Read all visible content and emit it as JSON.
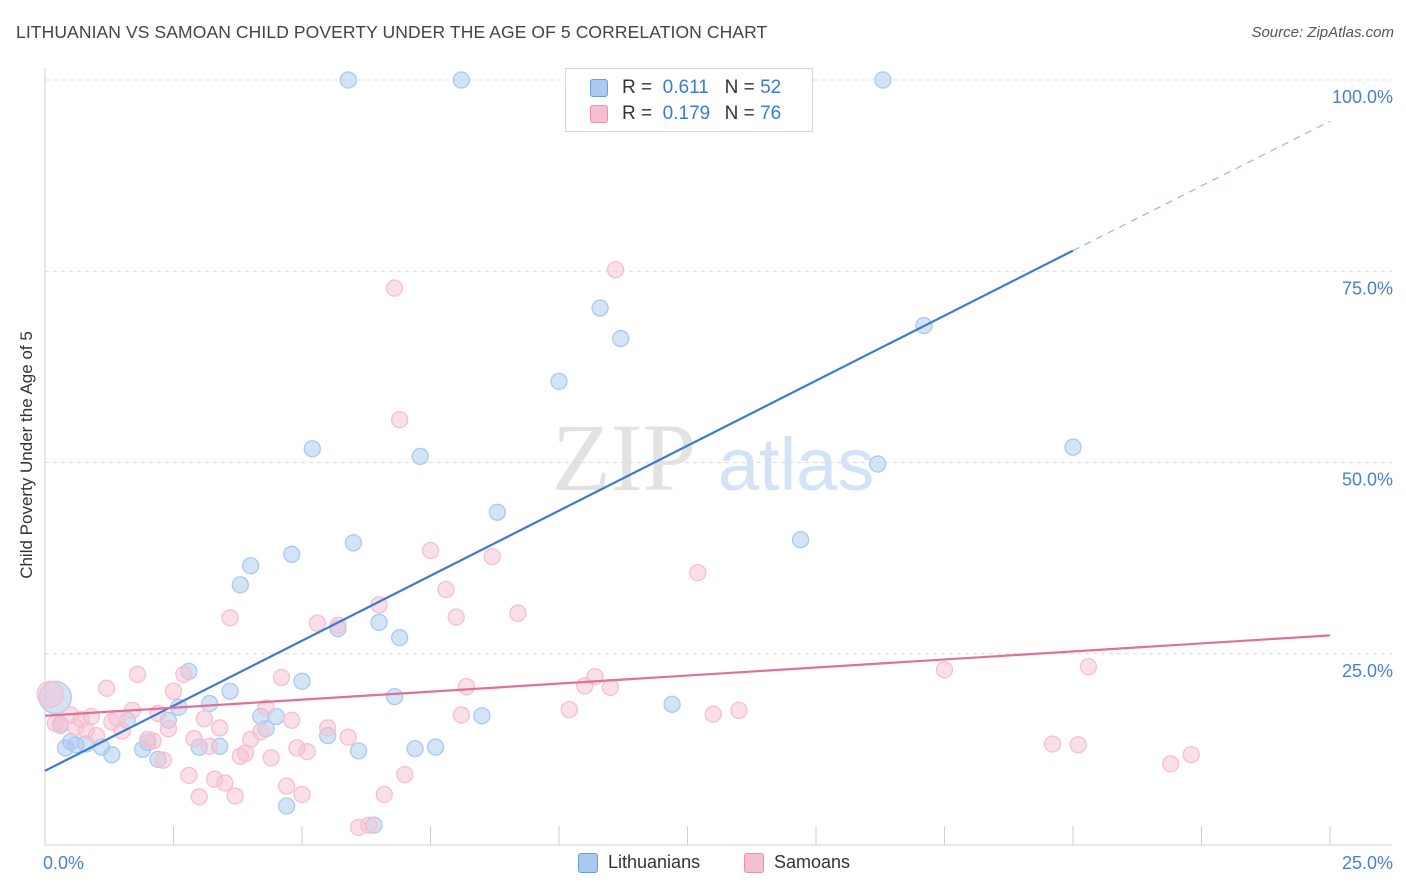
{
  "title": "LITHUANIAN VS SAMOAN CHILD POVERTY UNDER THE AGE OF 5 CORRELATION CHART",
  "source": "Source: ZipAtlas.com",
  "watermark": {
    "part1": "ZIP",
    "part2": "atlas"
  },
  "legend": {
    "r_label": "R =",
    "n_label": "N =",
    "rows": [
      {
        "r": "0.611",
        "n": "52",
        "color": "#a9c9f0"
      },
      {
        "r": "0.179",
        "n": "76",
        "color": "#f6bfd1"
      }
    ]
  },
  "bottom_legend": [
    "Lithuanians",
    "Samoans"
  ],
  "chart_data": {
    "type": "scatter",
    "title": "LITHUANIAN VS SAMOAN CHILD POVERTY UNDER THE AGE OF 5 CORRELATION CHART",
    "xlabel": "",
    "ylabel": "Child Poverty Under the Age of 5",
    "xlim": [
      0,
      25
    ],
    "ylim": [
      0,
      100
    ],
    "x_tick_labels": [
      "0.0%",
      "25.0%"
    ],
    "y_ticks": [
      25,
      50,
      75,
      100
    ],
    "y_tick_labels": [
      "25.0%",
      "50.0%",
      "75.0%",
      "100.0%"
    ],
    "grid": "horizontal dashed",
    "legend_position": "top-center",
    "series": [
      {
        "name": "Lithuanians",
        "color": "#3d7bd1",
        "fill": "#a9c9f0",
        "r": 0.611,
        "n": 52,
        "trend": {
          "x0": 0,
          "y0": 9.7,
          "x1": 20,
          "y1": 77.7,
          "dashed_to": {
            "x": 25,
            "y": 94.6
          }
        },
        "points": [
          [
            0.2,
            19.3
          ],
          [
            0.3,
            15.8
          ],
          [
            0.4,
            12.7
          ],
          [
            0.5,
            13.5
          ],
          [
            0.6,
            13.1
          ],
          [
            0.8,
            13.2
          ],
          [
            1.1,
            12.8
          ],
          [
            1.3,
            11.8
          ],
          [
            1.6,
            16.3
          ],
          [
            1.9,
            12.5
          ],
          [
            2.0,
            13.4
          ],
          [
            2.2,
            11.2
          ],
          [
            2.4,
            16.3
          ],
          [
            2.6,
            18.0
          ],
          [
            2.8,
            22.7
          ],
          [
            3.0,
            12.8
          ],
          [
            3.2,
            18.5
          ],
          [
            3.4,
            12.9
          ],
          [
            3.6,
            20.1
          ],
          [
            3.8,
            34.0
          ],
          [
            4.0,
            36.5
          ],
          [
            4.2,
            16.8
          ],
          [
            4.3,
            15.2
          ],
          [
            4.5,
            16.8
          ],
          [
            4.7,
            5.1
          ],
          [
            4.8,
            38.0
          ],
          [
            5.0,
            21.4
          ],
          [
            5.2,
            51.8
          ],
          [
            5.5,
            14.3
          ],
          [
            5.7,
            28.3
          ],
          [
            5.9,
            100.0
          ],
          [
            6.0,
            39.5
          ],
          [
            6.1,
            12.3
          ],
          [
            6.4,
            2.6
          ],
          [
            6.5,
            29.1
          ],
          [
            6.8,
            19.4
          ],
          [
            6.9,
            27.1
          ],
          [
            7.2,
            12.6
          ],
          [
            7.3,
            50.8
          ],
          [
            7.6,
            12.8
          ],
          [
            8.5,
            16.9
          ],
          [
            8.8,
            43.5
          ],
          [
            10.0,
            60.6
          ],
          [
            10.8,
            70.2
          ],
          [
            11.2,
            66.2
          ],
          [
            12.2,
            18.4
          ],
          [
            14.7,
            39.9
          ],
          [
            16.2,
            49.8
          ],
          [
            16.3,
            100.0
          ],
          [
            17.1,
            67.9
          ],
          [
            20.0,
            52.0
          ],
          [
            8.1,
            100.0
          ]
        ]
      },
      {
        "name": "Samoans",
        "color": "#e16f9a",
        "fill": "#f6bfd1",
        "r": 0.179,
        "n": 76,
        "trend": {
          "x0": 0,
          "y0": 16.9,
          "x1": 25,
          "y1": 27.4
        },
        "points": [
          [
            0.1,
            19.7
          ],
          [
            0.3,
            15.6
          ],
          [
            0.5,
            17.0
          ],
          [
            0.6,
            15.4
          ],
          [
            0.7,
            16.4
          ],
          [
            0.8,
            15.0
          ],
          [
            0.9,
            16.8
          ],
          [
            1.0,
            14.3
          ],
          [
            1.2,
            20.5
          ],
          [
            1.4,
            16.5
          ],
          [
            1.5,
            14.9
          ],
          [
            1.7,
            17.6
          ],
          [
            1.8,
            22.3
          ],
          [
            2.0,
            13.8
          ],
          [
            2.1,
            13.6
          ],
          [
            2.2,
            17.2
          ],
          [
            2.3,
            11.1
          ],
          [
            2.4,
            15.2
          ],
          [
            2.5,
            20.1
          ],
          [
            2.7,
            22.3
          ],
          [
            2.8,
            9.1
          ],
          [
            2.9,
            13.9
          ],
          [
            3.0,
            6.3
          ],
          [
            3.1,
            16.5
          ],
          [
            3.2,
            12.9
          ],
          [
            3.3,
            8.6
          ],
          [
            3.4,
            15.3
          ],
          [
            3.5,
            8.1
          ],
          [
            3.6,
            29.7
          ],
          [
            3.7,
            6.4
          ],
          [
            3.8,
            11.6
          ],
          [
            3.9,
            12.0
          ],
          [
            4.0,
            13.8
          ],
          [
            4.2,
            14.8
          ],
          [
            4.3,
            17.9
          ],
          [
            4.4,
            11.4
          ],
          [
            4.6,
            21.9
          ],
          [
            4.7,
            7.7
          ],
          [
            4.8,
            16.3
          ],
          [
            4.9,
            12.7
          ],
          [
            5.0,
            6.6
          ],
          [
            5.1,
            12.2
          ],
          [
            5.3,
            29.0
          ],
          [
            5.5,
            15.3
          ],
          [
            5.7,
            28.7
          ],
          [
            5.9,
            14.1
          ],
          [
            6.1,
            2.3
          ],
          [
            6.3,
            2.6
          ],
          [
            6.5,
            31.4
          ],
          [
            6.6,
            6.6
          ],
          [
            6.8,
            72.8
          ],
          [
            6.9,
            55.6
          ],
          [
            7.0,
            9.2
          ],
          [
            7.5,
            38.5
          ],
          [
            7.8,
            33.4
          ],
          [
            8.0,
            29.8
          ],
          [
            8.1,
            17.0
          ],
          [
            8.2,
            20.7
          ],
          [
            8.7,
            37.7
          ],
          [
            9.2,
            30.3
          ],
          [
            10.2,
            17.7
          ],
          [
            10.5,
            20.8
          ],
          [
            10.7,
            22.0
          ],
          [
            11.0,
            20.6
          ],
          [
            11.1,
            75.2
          ],
          [
            12.7,
            35.6
          ],
          [
            13.0,
            17.1
          ],
          [
            13.5,
            17.6
          ],
          [
            17.5,
            22.9
          ],
          [
            19.6,
            13.2
          ],
          [
            20.1,
            13.1
          ],
          [
            20.3,
            23.3
          ],
          [
            21.9,
            10.6
          ],
          [
            22.3,
            11.8
          ],
          [
            0.2,
            15.9
          ],
          [
            1.3,
            16.1
          ]
        ]
      }
    ]
  }
}
